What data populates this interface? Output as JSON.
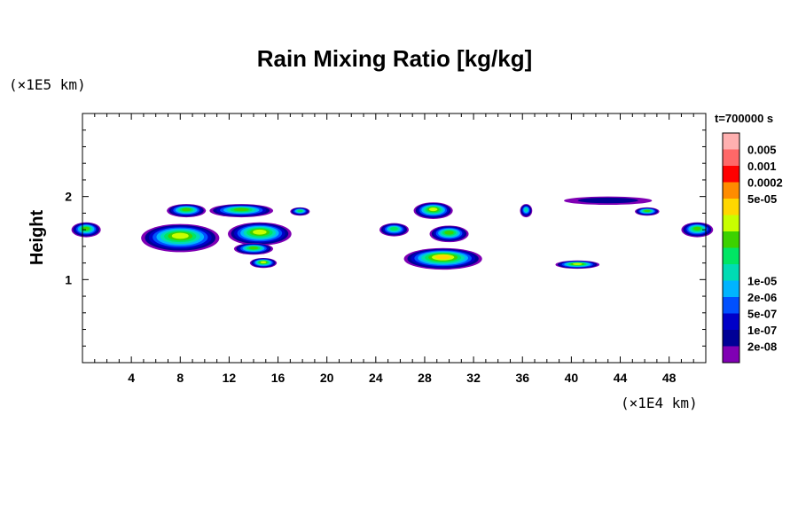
{
  "chart_data": {
    "type": "heatmap",
    "title": "Rain Mixing Ratio [kg/kg]",
    "time_label": "t=700000 s",
    "ylabel": "Height",
    "xunit": "(×1E4 km)",
    "yunit": "(×1E5 km)",
    "xlim": [
      0,
      51
    ],
    "ylim": [
      0,
      3
    ],
    "xticks": [
      "4",
      "8",
      "12",
      "16",
      "20",
      "24",
      "28",
      "32",
      "36",
      "40",
      "44",
      "48"
    ],
    "xtick_values": [
      4,
      8,
      12,
      16,
      20,
      24,
      28,
      32,
      36,
      40,
      44,
      48
    ],
    "yticks": [
      "1",
      "2"
    ],
    "ytick_values": [
      1,
      2
    ],
    "colorbar": {
      "levels": [
        "0.005",
        "0.001",
        "0.0002",
        "5e-05",
        "1e-05",
        "2e-06",
        "5e-07",
        "1e-07",
        "2e-08"
      ],
      "colors": [
        "#ffb0b0",
        "#ff6868",
        "#ff0000",
        "#ff8c00",
        "#ffd700",
        "#c8ff00",
        "#3cd200",
        "#00e664",
        "#00dcb4",
        "#00b4ff",
        "#0050ff",
        "#0000c8",
        "#000096",
        "#8000b4"
      ]
    },
    "patches": [
      {
        "x": 0.3,
        "y": 1.6,
        "rx": 1.2,
        "ry": 0.09,
        "level": 6
      },
      {
        "x": 8.5,
        "y": 1.83,
        "rx": 1.6,
        "ry": 0.08,
        "level": 6
      },
      {
        "x": 13.0,
        "y": 1.83,
        "rx": 2.6,
        "ry": 0.08,
        "level": 6
      },
      {
        "x": 17.8,
        "y": 1.82,
        "rx": 0.8,
        "ry": 0.05,
        "level": 7
      },
      {
        "x": 8.0,
        "y": 1.5,
        "rx": 3.2,
        "ry": 0.17,
        "level": 5
      },
      {
        "x": 14.5,
        "y": 1.55,
        "rx": 2.6,
        "ry": 0.14,
        "level": 5
      },
      {
        "x": 14.0,
        "y": 1.37,
        "rx": 1.6,
        "ry": 0.07,
        "level": 6
      },
      {
        "x": 14.8,
        "y": 1.2,
        "rx": 1.1,
        "ry": 0.06,
        "level": 5
      },
      {
        "x": 28.7,
        "y": 1.83,
        "rx": 1.6,
        "ry": 0.1,
        "level": 5
      },
      {
        "x": 25.5,
        "y": 1.6,
        "rx": 1.2,
        "ry": 0.08,
        "level": 7
      },
      {
        "x": 30.0,
        "y": 1.55,
        "rx": 1.6,
        "ry": 0.1,
        "level": 6
      },
      {
        "x": 29.5,
        "y": 1.25,
        "rx": 3.2,
        "ry": 0.13,
        "level": 4
      },
      {
        "x": 36.3,
        "y": 1.83,
        "rx": 0.5,
        "ry": 0.08,
        "level": 8
      },
      {
        "x": 43.0,
        "y": 1.95,
        "rx": 3.6,
        "ry": 0.05,
        "level": 12
      },
      {
        "x": 40.5,
        "y": 1.18,
        "rx": 1.8,
        "ry": 0.05,
        "level": 5
      },
      {
        "x": 50.3,
        "y": 1.6,
        "rx": 1.3,
        "ry": 0.09,
        "level": 6
      },
      {
        "x": 46.2,
        "y": 1.82,
        "rx": 1.0,
        "ry": 0.05,
        "level": 6
      }
    ]
  }
}
